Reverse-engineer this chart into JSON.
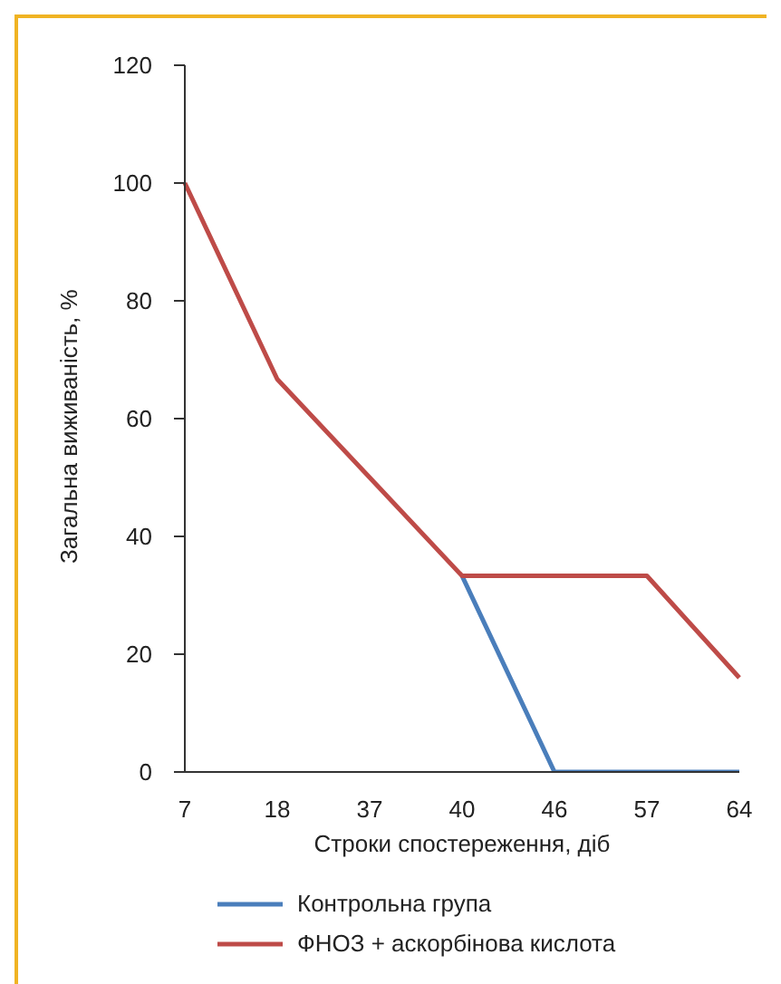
{
  "chart_data": {
    "type": "line",
    "xlabel": "Строки спостереження, діб",
    "ylabel": "Загальна виживаність, %",
    "categories": [
      "7",
      "18",
      "37",
      "40",
      "46",
      "57",
      "64"
    ],
    "series": [
      {
        "name": "Контрольна група",
        "color": "#4a7ebb",
        "values": [
          null,
          null,
          null,
          33.3,
          0,
          0,
          0
        ]
      },
      {
        "name": "ФНОЗ + аскорбінова кислота",
        "color": "#be4b48",
        "values": [
          100,
          66.7,
          50,
          33.3,
          33.3,
          33.3,
          16
        ]
      }
    ],
    "ylim": [
      0,
      120
    ],
    "yticks": [
      0,
      20,
      40,
      60,
      80,
      100,
      120
    ],
    "grid": false,
    "legend": "bottom",
    "marker": "none",
    "line_style": "solid"
  }
}
